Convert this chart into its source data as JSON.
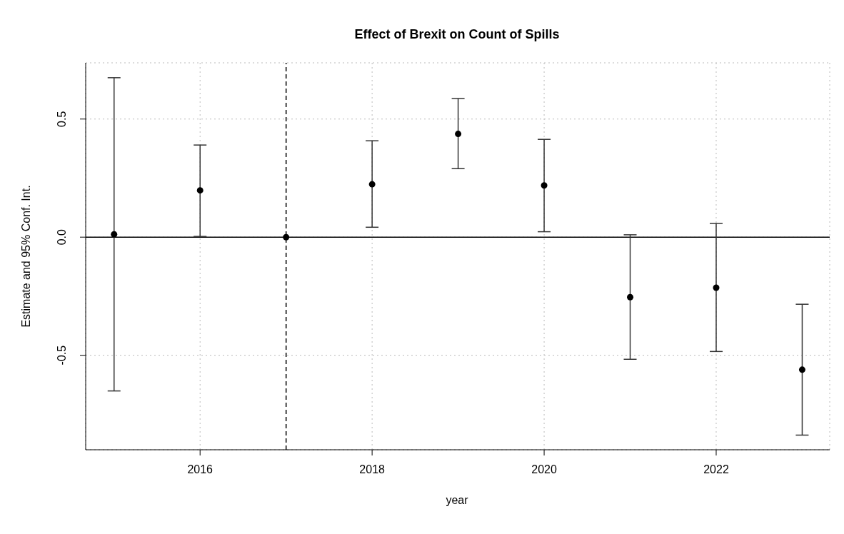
{
  "chart_data": {
    "type": "scatter",
    "title": "Effect of Brexit on Count of Spills",
    "xlabel": "year",
    "ylabel": "Estimate and 95% Conf. Int.",
    "x": [
      2015,
      2016,
      2017,
      2018,
      2019,
      2020,
      2021,
      2022,
      2023
    ],
    "series": [
      {
        "color": "#000000",
        "values": [
          0.012,
          0.198,
          0,
          0.224,
          0.437,
          0.219,
          -0.254,
          -0.214,
          -0.561
        ],
        "errors": [
          [
            -0.651,
            0.675
          ],
          [
            0.003,
            0.39
          ],
          null,
          [
            0.042,
            0.408
          ],
          [
            0.29,
            0.587
          ],
          [
            0.023,
            0.414
          ],
          [
            -0.517,
            0.01
          ],
          [
            -0.484,
            0.058
          ],
          [
            -0.838,
            -0.284
          ]
        ]
      }
    ],
    "xlim": [
      2014.67,
      2023.32
    ],
    "xticks": [
      2016,
      2018,
      2020,
      2022
    ],
    "ylim": [
      -0.9,
      0.738
    ],
    "yticks": [
      {
        "value": -0.5,
        "label": "-0.5"
      },
      {
        "value": 0,
        "label": "0.0"
      },
      {
        "value": 0.5,
        "label": "0.5"
      }
    ],
    "ref_lines": [
      {
        "axis": "y",
        "value": 0,
        "color": "#000000",
        "line_style": "solid"
      },
      {
        "axis": "x",
        "value": 2017,
        "color": "#000000",
        "line_style": "dashed"
      }
    ],
    "grid": true,
    "marker": "circle"
  }
}
